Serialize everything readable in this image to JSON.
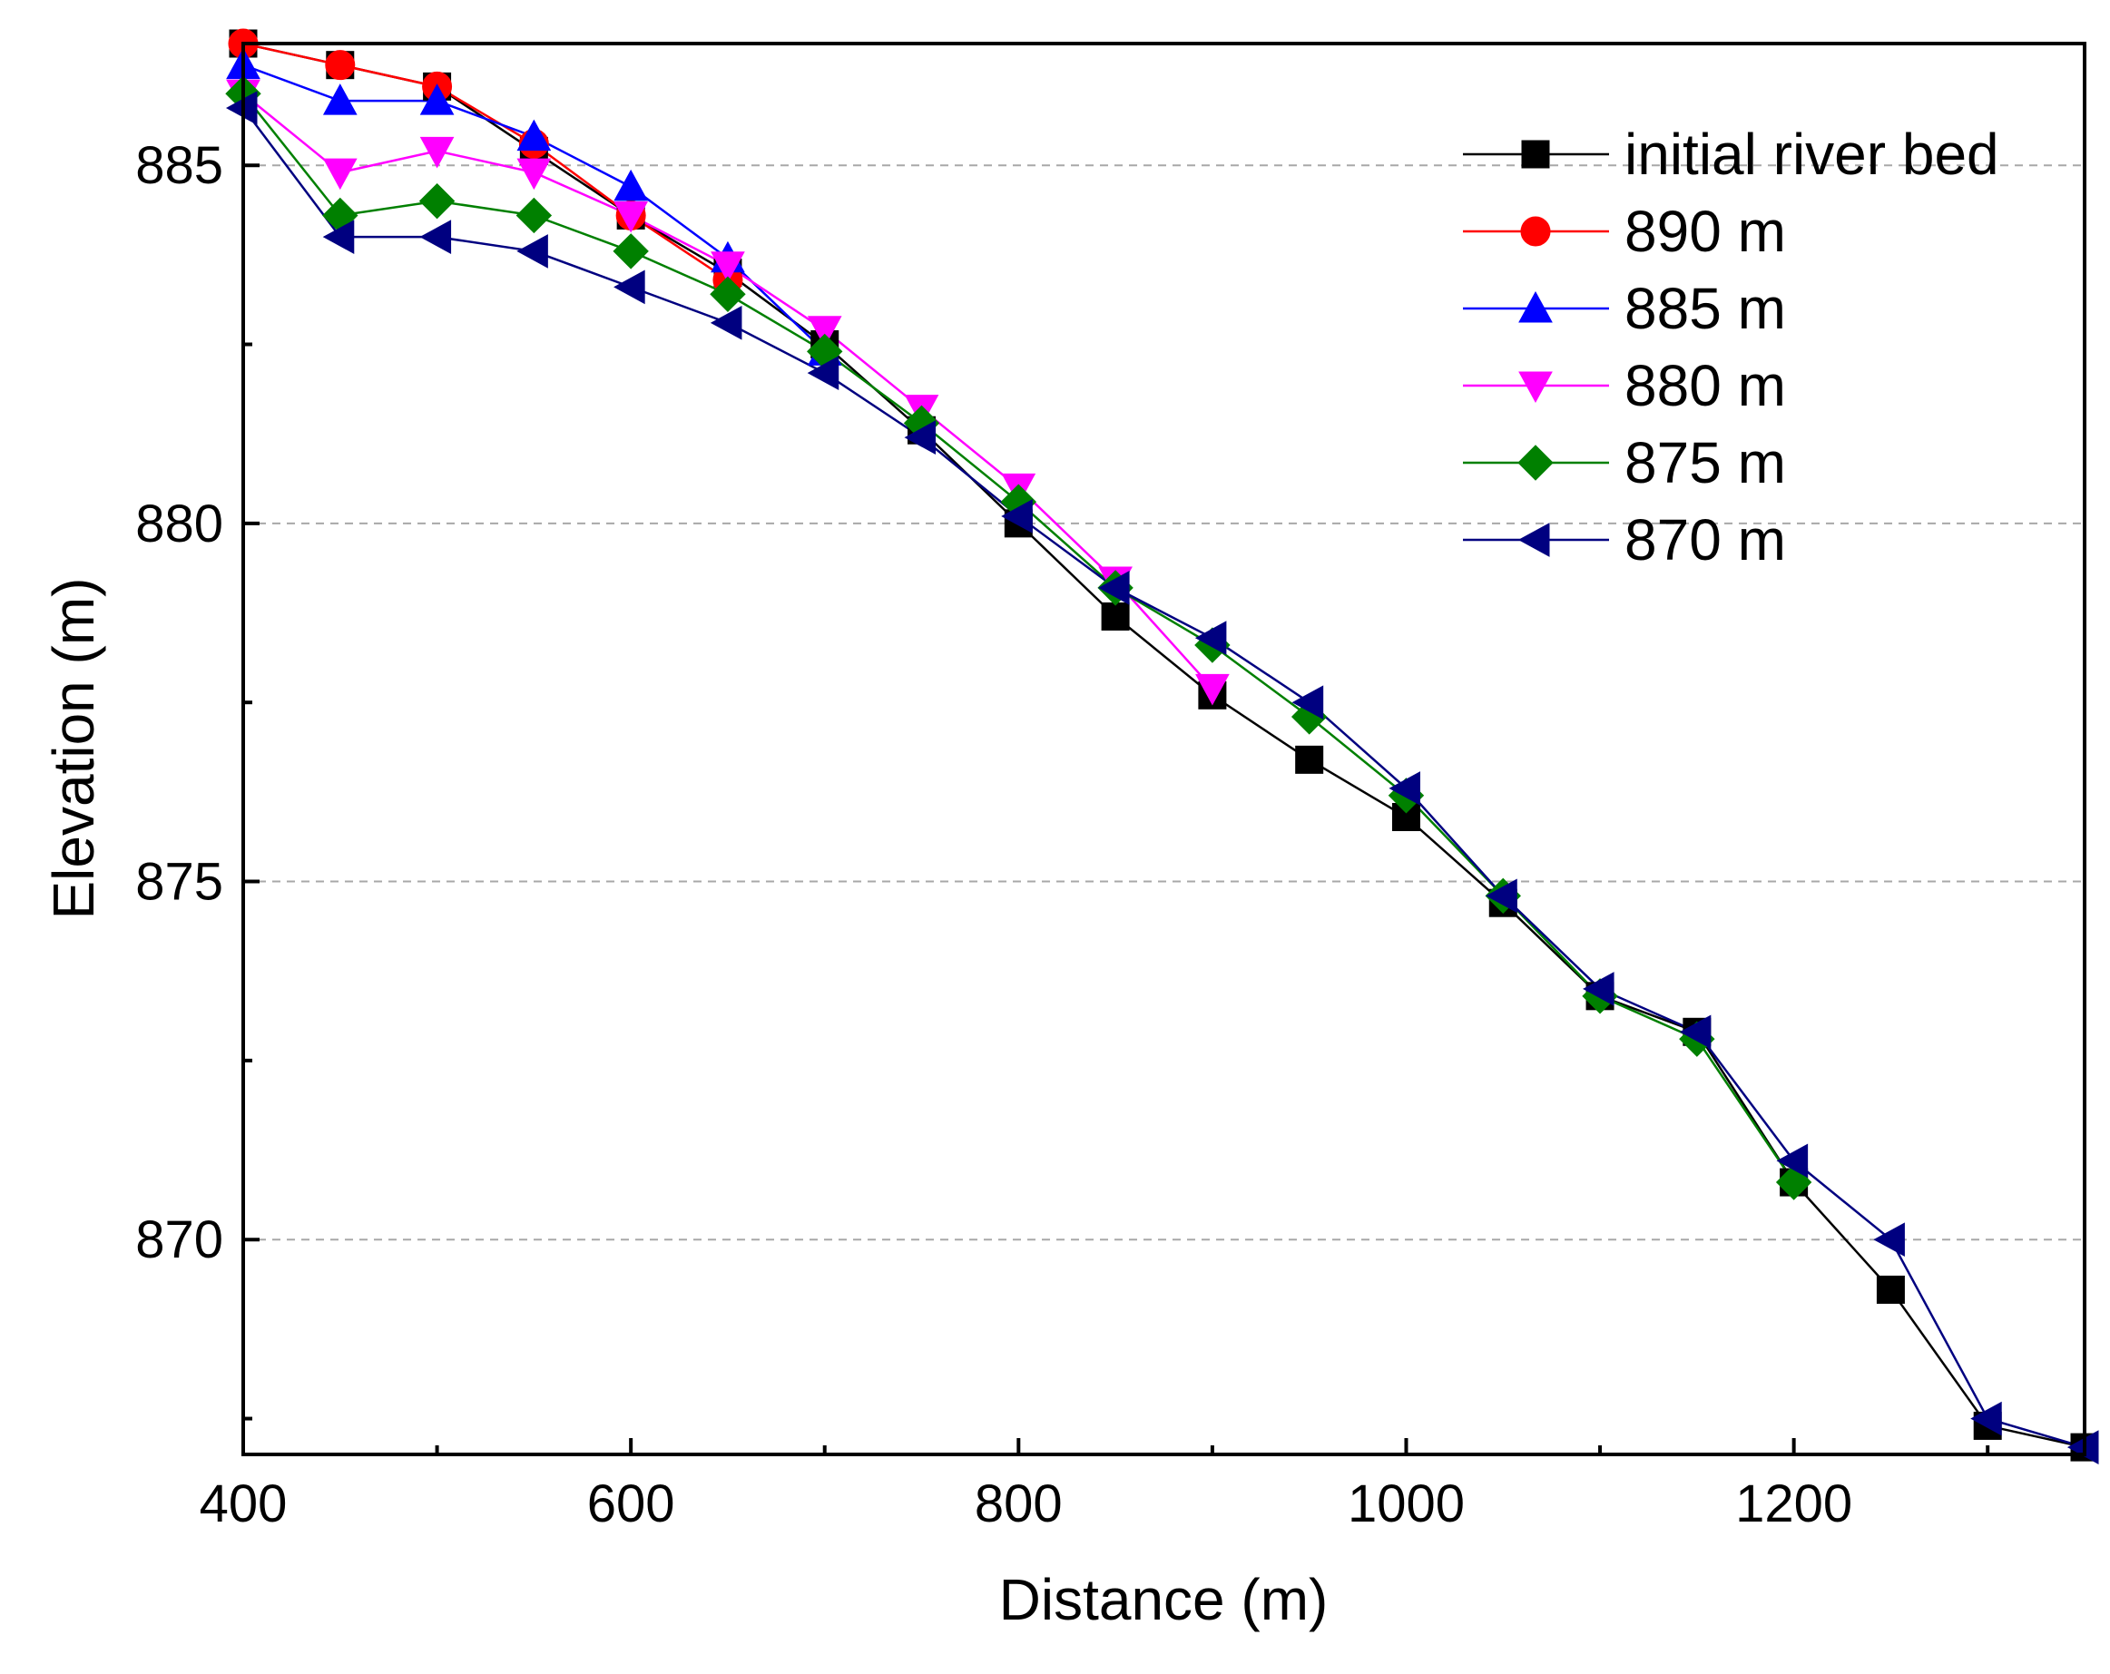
{
  "chart_data": {
    "type": "line",
    "title": "",
    "xlabel": "Distance (m)",
    "ylabel": "Elevation (m)",
    "xlim": [
      400,
      1350
    ],
    "ylim": [
      867,
      886.7
    ],
    "xticks": [
      400,
      600,
      800,
      1000,
      1200
    ],
    "yticks": [
      870,
      875,
      880,
      885
    ],
    "y_minor_ticks": [
      867.5,
      872.5,
      877.5,
      882.5
    ],
    "grid": "horizontal dashed at major y ticks",
    "legend_position": "top-right",
    "series": [
      {
        "name": "initial river bed",
        "color": "#000000",
        "marker": "square",
        "x": [
          400,
          450,
          500,
          550,
          600,
          650,
          700,
          750,
          800,
          850,
          900,
          950,
          1000,
          1050,
          1100,
          1150,
          1200,
          1250,
          1300,
          1350
        ],
        "y": [
          886.7,
          886.4,
          886.1,
          885.2,
          884.3,
          883.5,
          882.5,
          881.3,
          880.0,
          878.7,
          877.6,
          876.7,
          875.9,
          874.7,
          873.4,
          872.9,
          870.8,
          869.3,
          867.4,
          867.1
        ]
      },
      {
        "name": "890 m",
        "color": "#ff0000",
        "marker": "circle",
        "x": [
          400,
          450,
          500,
          550,
          600,
          650
        ],
        "y": [
          886.7,
          886.4,
          886.1,
          885.3,
          884.3,
          883.4
        ]
      },
      {
        "name": "885 m",
        "color": "#0000ff",
        "marker": "triangle-up",
        "x": [
          400,
          450,
          500,
          550,
          600,
          650,
          700
        ],
        "y": [
          886.4,
          885.9,
          885.9,
          885.4,
          884.7,
          883.7,
          882.4
        ]
      },
      {
        "name": "880 m",
        "color": "#ff00ff",
        "marker": "triangle-down",
        "x": [
          400,
          450,
          500,
          550,
          600,
          650,
          700,
          750,
          800,
          850,
          900
        ],
        "y": [
          886.0,
          884.9,
          885.2,
          884.9,
          884.3,
          883.6,
          882.7,
          881.6,
          880.5,
          879.2,
          877.7
        ]
      },
      {
        "name": "875 m",
        "color": "#008000",
        "marker": "diamond",
        "x": [
          400,
          450,
          500,
          550,
          600,
          650,
          700,
          750,
          800,
          850,
          900,
          950,
          1000,
          1050,
          1100,
          1150,
          1200
        ],
        "y": [
          886.0,
          884.3,
          884.5,
          884.3,
          883.8,
          883.2,
          882.4,
          881.4,
          880.3,
          879.1,
          878.3,
          877.3,
          876.2,
          874.8,
          873.4,
          872.8,
          870.8
        ]
      },
      {
        "name": "870 m",
        "color": "#000080",
        "marker": "triangle-left",
        "x": [
          400,
          450,
          500,
          550,
          600,
          650,
          700,
          750,
          800,
          850,
          900,
          950,
          1000,
          1050,
          1100,
          1150,
          1200,
          1250,
          1300,
          1350
        ],
        "y": [
          885.8,
          884.0,
          884.0,
          883.8,
          883.3,
          882.8,
          882.1,
          881.2,
          880.1,
          879.1,
          878.4,
          877.5,
          876.3,
          874.8,
          873.5,
          872.9,
          871.1,
          870.0,
          867.5,
          867.1
        ]
      }
    ]
  }
}
